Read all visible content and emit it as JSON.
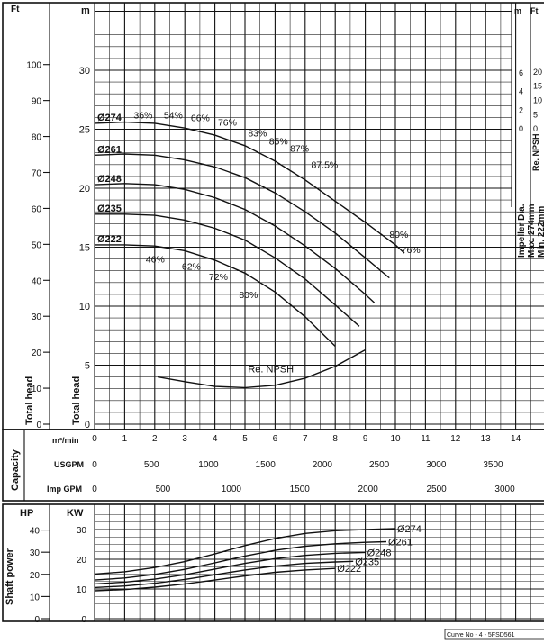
{
  "head_panel": {
    "label_ft": "Ft",
    "label_m": "m",
    "axis_title_ft": "Total head",
    "axis_title_m": "Total head",
    "ft_ticks": [
      "100",
      "90",
      "80",
      "70",
      "60",
      "50",
      "40",
      "30",
      "20",
      "10",
      "0"
    ],
    "m_ticks": [
      "30",
      "25",
      "20",
      "15",
      "10",
      "5",
      "0"
    ],
    "right_label_m": "m",
    "right_label_ft": "Ft",
    "npsh_m_ticks": [
      "6",
      "4",
      "2",
      "0"
    ],
    "npsh_ft_ticks": [
      "20",
      "15",
      "10",
      "5",
      "0"
    ],
    "npsh_axis_title": "Re. NPSH",
    "impeller_note": [
      "Impeller Dia.",
      "Max. 274mm",
      "Min. 222mm"
    ]
  },
  "capacity_panel": {
    "axis_title": "Capacity",
    "row_labels": {
      "m3min": "m³/min",
      "usgpm": "USGPM",
      "impgpm": "Imp GPM"
    },
    "m3min_ticks": [
      "0",
      "1",
      "2",
      "3",
      "4",
      "5",
      "6",
      "7",
      "8",
      "9",
      "10",
      "11",
      "12",
      "13",
      "14"
    ],
    "usgpm_ticks": [
      "0",
      "500",
      "1000",
      "1500",
      "2000",
      "2500",
      "3000",
      "3500"
    ],
    "impgpm_ticks": [
      "0",
      "500",
      "1000",
      "1500",
      "2000",
      "2500",
      "3000"
    ]
  },
  "power_panel": {
    "axis_title": "Shaft power",
    "label_hp": "HP",
    "label_kw": "KW",
    "hp_ticks": [
      "40",
      "30",
      "20",
      "10",
      "0"
    ],
    "kw_ticks": [
      "30",
      "20",
      "10",
      "0"
    ]
  },
  "curve_no": "Curve No - 4 - 5FSD561",
  "chart_data": [
    {
      "type": "line",
      "title": "",
      "xlabel": "m³/min",
      "ylabel": "Total head (m)",
      "xlim": [
        0,
        15
      ],
      "ylim": [
        0,
        33
      ],
      "x_ticks": [
        0,
        1,
        2,
        3,
        4,
        5,
        6,
        7,
        8,
        9,
        10,
        11,
        12,
        13,
        14
      ],
      "grid": true,
      "series": [
        {
          "name": "Ø274",
          "x": [
            0,
            1,
            2,
            3,
            4,
            5,
            6,
            7,
            8,
            9,
            10,
            10.3
          ],
          "y": [
            25.5,
            25.6,
            25.5,
            25.1,
            24.5,
            23.6,
            22.3,
            20.7,
            18.9,
            17.1,
            15.2,
            14.5
          ]
        },
        {
          "name": "Ø261",
          "x": [
            0,
            1,
            2,
            3,
            4,
            5,
            6,
            7,
            8,
            9,
            9.8
          ],
          "y": [
            22.8,
            22.9,
            22.8,
            22.4,
            21.8,
            20.9,
            19.6,
            18.0,
            16.2,
            14.1,
            12.4
          ]
        },
        {
          "name": "Ø248",
          "x": [
            0,
            1,
            2,
            3,
            4,
            5,
            6,
            7,
            8,
            9,
            9.3
          ],
          "y": [
            20.3,
            20.4,
            20.3,
            19.9,
            19.2,
            18.2,
            16.8,
            15.1,
            13.2,
            11.0,
            10.3
          ]
        },
        {
          "name": "Ø235",
          "x": [
            0,
            1,
            2,
            3,
            4,
            5,
            6,
            7,
            8,
            8.8
          ],
          "y": [
            17.8,
            17.8,
            17.7,
            17.3,
            16.6,
            15.6,
            14.1,
            12.3,
            10.1,
            8.3
          ]
        },
        {
          "name": "Ø222",
          "x": [
            0,
            1,
            2,
            3,
            4,
            5,
            6,
            7,
            8
          ],
          "y": [
            15.2,
            15.2,
            15.1,
            14.7,
            13.9,
            12.8,
            11.2,
            9.1,
            6.6
          ]
        },
        {
          "name": "Re. NPSH",
          "x": [
            2.1,
            3,
            4,
            5,
            6,
            7,
            8,
            9
          ],
          "y": [
            4.0,
            3.6,
            3.2,
            3.1,
            3.3,
            3.9,
            4.9,
            6.3
          ]
        }
      ],
      "efficiency_labels": [
        {
          "text": "36%",
          "x": 1.3,
          "y": 25.9
        },
        {
          "text": "54%",
          "x": 2.3,
          "y": 25.9
        },
        {
          "text": "66%",
          "x": 3.2,
          "y": 25.7
        },
        {
          "text": "76%",
          "x": 4.1,
          "y": 25.3
        },
        {
          "text": "83%",
          "x": 5.1,
          "y": 24.4
        },
        {
          "text": "85%",
          "x": 5.8,
          "y": 23.7
        },
        {
          "text": "87%",
          "x": 6.5,
          "y": 23.1
        },
        {
          "text": "87.5%",
          "x": 7.2,
          "y": 21.7
        },
        {
          "text": "80%",
          "x": 9.8,
          "y": 15.8
        },
        {
          "text": "76%",
          "x": 10.2,
          "y": 14.5
        },
        {
          "text": "46%",
          "x": 1.7,
          "y": 13.7
        },
        {
          "text": "62%",
          "x": 2.9,
          "y": 13.1
        },
        {
          "text": "72%",
          "x": 3.8,
          "y": 12.2
        },
        {
          "text": "80%",
          "x": 4.8,
          "y": 10.7
        }
      ],
      "annotations": [
        "Re. NPSH"
      ]
    },
    {
      "type": "line",
      "title": "",
      "xlabel": "m³/min",
      "ylabel": "Shaft power (KW)",
      "xlim": [
        0,
        15
      ],
      "ylim": [
        0,
        35
      ],
      "grid": true,
      "series": [
        {
          "name": "Ø274",
          "x": [
            0,
            1,
            2,
            3,
            4,
            5,
            6,
            7,
            8,
            9,
            10
          ],
          "y": [
            15.0,
            15.8,
            17.2,
            19.2,
            21.8,
            24.6,
            27.0,
            28.7,
            29.6,
            30.0,
            30.3
          ]
        },
        {
          "name": "Ø261",
          "x": [
            0,
            1,
            2,
            3,
            4,
            5,
            6,
            7,
            8,
            9,
            9.7
          ],
          "y": [
            13.0,
            13.7,
            14.9,
            16.6,
            18.8,
            21.1,
            23.0,
            24.4,
            25.2,
            25.7,
            25.9
          ]
        },
        {
          "name": "Ø248",
          "x": [
            0,
            1,
            2,
            3,
            4,
            5,
            6,
            7,
            8,
            9
          ],
          "y": [
            11.7,
            12.3,
            13.3,
            14.8,
            16.7,
            18.6,
            20.2,
            21.3,
            22.0,
            22.3
          ]
        },
        {
          "name": "Ø235",
          "x": [
            0,
            1,
            2,
            3,
            4,
            5,
            6,
            7,
            8,
            8.6
          ],
          "y": [
            10.5,
            11.0,
            11.9,
            13.2,
            14.8,
            16.4,
            17.7,
            18.6,
            19.1,
            19.3
          ]
        },
        {
          "name": "Ø222",
          "x": [
            0,
            1,
            2,
            3,
            4,
            5,
            6,
            7,
            8
          ],
          "y": [
            9.4,
            9.8,
            10.6,
            11.7,
            13.0,
            14.4,
            15.6,
            16.4,
            16.9
          ]
        }
      ]
    }
  ]
}
